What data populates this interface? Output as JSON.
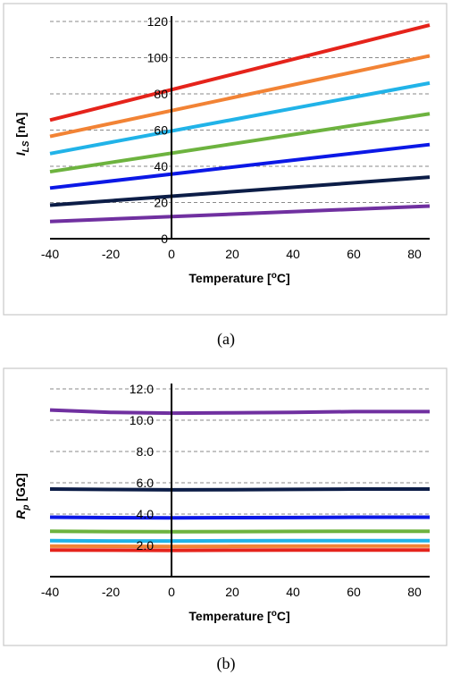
{
  "chart_data": [
    {
      "type": "line",
      "caption": "(a)",
      "xlabel_main": "Temperature [",
      "xlabel_sup": "o",
      "xlabel_end": "C]",
      "ylabel_main": "I",
      "ylabel_sub": "LS",
      "ylabel_unit": " [nA]",
      "xlim": [
        -40,
        85
      ],
      "ylim": [
        0,
        120
      ],
      "x_ticks": [
        -40,
        -20,
        0,
        20,
        40,
        60,
        80
      ],
      "y_ticks": [
        0,
        20,
        40,
        60,
        80,
        100,
        120
      ],
      "y_tick_labels": [
        "0",
        "20",
        "40",
        "60",
        "80",
        "100",
        "120"
      ],
      "grid": true,
      "x": [
        -40,
        85
      ],
      "series": [
        {
          "color": "#e5231b",
          "values": [
            65.5,
            118
          ]
        },
        {
          "color": "#f28335",
          "values": [
            56.5,
            101
          ]
        },
        {
          "color": "#21b3e8",
          "values": [
            47,
            86
          ]
        },
        {
          "color": "#6db33f",
          "values": [
            37,
            69
          ]
        },
        {
          "color": "#0b18e6",
          "values": [
            28,
            52
          ]
        },
        {
          "color": "#0c1d47",
          "values": [
            18.5,
            34
          ]
        },
        {
          "color": "#7030a0",
          "values": [
            9.5,
            18
          ]
        }
      ]
    },
    {
      "type": "line",
      "caption": "(b)",
      "xlabel_main": "Temperature [",
      "xlabel_sup": "o",
      "xlabel_end": "C]",
      "ylabel_main": "R",
      "ylabel_sub": "p",
      "ylabel_unit": " [GΩ]",
      "xlim": [
        -40,
        85
      ],
      "ylim": [
        0,
        12
      ],
      "x_ticks": [
        -40,
        -20,
        0,
        20,
        40,
        60,
        80
      ],
      "y_ticks": [
        2,
        4,
        6,
        8,
        10,
        12
      ],
      "y_tick_labels": [
        "2.0",
        "4.0",
        "6.0",
        "8.0",
        "10.0",
        "12.0"
      ],
      "grid": true,
      "x": [
        -40,
        -20,
        0,
        20,
        40,
        60,
        85
      ],
      "series": [
        {
          "color": "#7030a0",
          "values": [
            10.65,
            10.5,
            10.45,
            10.47,
            10.5,
            10.55,
            10.55
          ]
        },
        {
          "color": "#0c1d47",
          "values": [
            5.6,
            5.57,
            5.55,
            5.56,
            5.58,
            5.6,
            5.6
          ]
        },
        {
          "color": "#0b18e6",
          "values": [
            3.8,
            3.77,
            3.76,
            3.77,
            3.78,
            3.8,
            3.8
          ]
        },
        {
          "color": "#6db33f",
          "values": [
            2.9,
            2.88,
            2.87,
            2.88,
            2.89,
            2.9,
            2.9
          ]
        },
        {
          "color": "#21b3e8",
          "values": [
            2.3,
            2.28,
            2.28,
            2.29,
            2.3,
            2.3,
            2.3
          ]
        },
        {
          "color": "#f28335",
          "values": [
            1.95,
            1.94,
            1.93,
            1.94,
            1.95,
            1.96,
            1.96
          ]
        },
        {
          "color": "#e5231b",
          "values": [
            1.7,
            1.69,
            1.68,
            1.69,
            1.7,
            1.7,
            1.7
          ]
        }
      ]
    }
  ]
}
